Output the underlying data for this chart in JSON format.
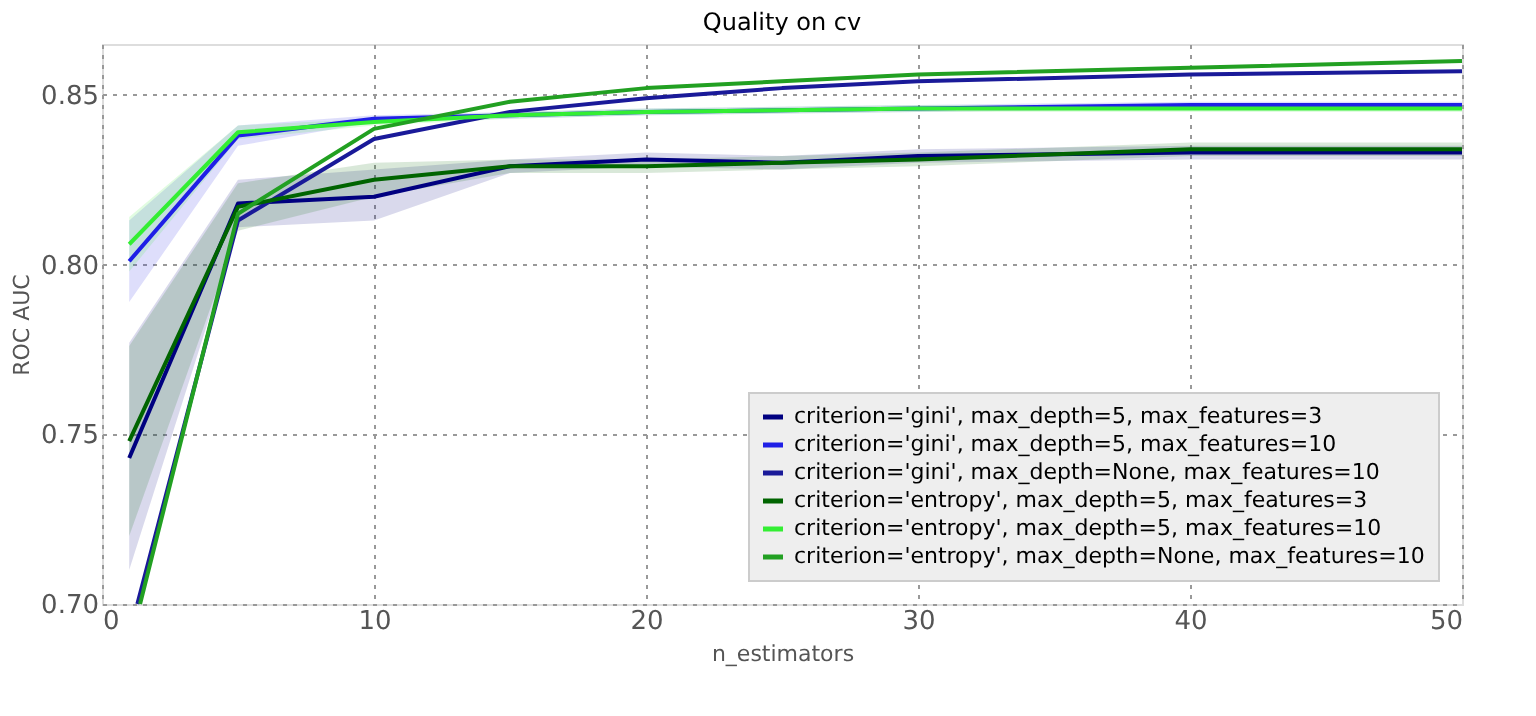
{
  "chart_data": {
    "type": "line",
    "title": "Quality on cv",
    "xlabel": "n_estimators",
    "ylabel": "ROC AUC",
    "xlim": [
      0,
      50
    ],
    "xticks": [
      0,
      10,
      20,
      30,
      40,
      50
    ],
    "ylim": [
      0.7,
      0.865
    ],
    "yticks": [
      {
        "value": 0.7,
        "label": "0.70"
      },
      0.75,
      {
        "value": 0.8,
        "label": "0.80"
      },
      0.85
    ],
    "grid": true,
    "legend": "bottom right",
    "line_style": "solid",
    "marker": "none",
    "series": [
      {
        "name": "criterion='gini', max_depth=5, max_features=3",
        "color": "#000080",
        "x": [
          1,
          5,
          10,
          15,
          20,
          25,
          30,
          40,
          50
        ],
        "values": [
          0.743,
          0.818,
          0.82,
          0.829,
          0.831,
          0.83,
          0.832,
          0.833,
          0.833
        ],
        "lower": [
          0.71,
          0.811,
          0.813,
          0.827,
          0.829,
          0.828,
          0.83,
          0.831,
          0.831
        ],
        "upper": [
          0.777,
          0.825,
          0.828,
          0.831,
          0.833,
          0.832,
          0.834,
          0.835,
          0.835
        ]
      },
      {
        "name": "criterion='gini', max_depth=5, max_features=10",
        "color": "#1f1fe6",
        "x": [
          1,
          5,
          10,
          15,
          20,
          30,
          40,
          50
        ],
        "values": [
          0.801,
          0.838,
          0.843,
          0.844,
          0.845,
          0.846,
          0.847,
          0.847
        ],
        "lower": [
          0.789,
          0.835,
          0.842,
          0.843,
          0.844,
          0.845,
          0.846,
          0.846
        ],
        "upper": [
          0.813,
          0.841,
          0.844,
          0.845,
          0.846,
          0.847,
          0.848,
          0.848
        ]
      },
      {
        "name": "criterion='gini', max_depth=None, max_features=10",
        "color": "#1a1a99",
        "x": [
          1.3,
          5,
          10,
          15,
          20,
          25,
          30,
          40,
          50
        ],
        "values": [
          0.7,
          0.813,
          0.837,
          0.845,
          0.849,
          0.852,
          0.854,
          0.856,
          0.857
        ]
      },
      {
        "name": "criterion='entropy', max_depth=5, max_features=3",
        "color": "#006400",
        "x": [
          1,
          5,
          10,
          15,
          20,
          30,
          40,
          50
        ],
        "values": [
          0.748,
          0.817,
          0.825,
          0.829,
          0.829,
          0.831,
          0.834,
          0.834
        ],
        "lower": [
          0.72,
          0.81,
          0.82,
          0.827,
          0.827,
          0.829,
          0.832,
          0.832
        ],
        "upper": [
          0.776,
          0.824,
          0.83,
          0.831,
          0.831,
          0.833,
          0.836,
          0.836
        ]
      },
      {
        "name": "criterion='entropy', max_depth=5, max_features=10",
        "color": "#33ee33",
        "x": [
          1,
          5,
          10,
          15,
          20,
          30,
          40,
          50
        ],
        "values": [
          0.806,
          0.839,
          0.842,
          0.844,
          0.845,
          0.846,
          0.846,
          0.846
        ],
        "lower": [
          0.798,
          0.837,
          0.841,
          0.843,
          0.844,
          0.845,
          0.845,
          0.845
        ],
        "upper": [
          0.814,
          0.841,
          0.843,
          0.845,
          0.846,
          0.847,
          0.847,
          0.847
        ]
      },
      {
        "name": "criterion='entropy', max_depth=None, max_features=10",
        "color": "#22a022",
        "x": [
          1.4,
          5,
          10,
          15,
          20,
          25,
          30,
          40,
          50
        ],
        "values": [
          0.7,
          0.815,
          0.84,
          0.848,
          0.852,
          0.854,
          0.856,
          0.858,
          0.86
        ]
      }
    ]
  }
}
